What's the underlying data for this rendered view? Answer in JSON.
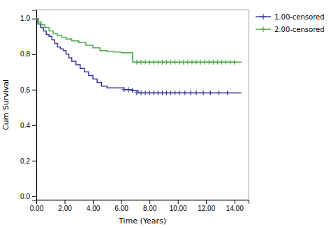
{
  "chart_data": {
    "type": "step",
    "xlabel": "Time (Years)",
    "ylabel": "Cum Survival",
    "xlim": [
      0,
      15
    ],
    "ylim": [
      -0.02,
      1.05
    ],
    "xticks": [
      {
        "value": 0,
        "label": "0.00"
      },
      {
        "value": 2,
        "label": "2.00"
      },
      {
        "value": 4,
        "label": "4.00"
      },
      {
        "value": 6,
        "label": "6.00"
      },
      {
        "value": 8,
        "label": "8.00"
      },
      {
        "value": 10,
        "label": "10.00"
      },
      {
        "value": 12,
        "label": "12.00"
      },
      {
        "value": 14,
        "label": "14.00"
      }
    ],
    "yticks": [
      {
        "value": 0,
        "label": "0.0"
      },
      0.2,
      0.4,
      0.6,
      0.8,
      {
        "value": 1,
        "label": "1.0"
      }
    ],
    "legend": "right",
    "series": [
      {
        "name": "1.00-censored",
        "color": "#3a3a9c",
        "marker": "+",
        "x": [
          0.0,
          0.1,
          0.3,
          0.5,
          0.7,
          0.9,
          1.1,
          1.3,
          1.5,
          1.7,
          1.9,
          2.1,
          2.3,
          2.5,
          2.8,
          3.1,
          3.4,
          3.7,
          4.0,
          4.3,
          4.6,
          5.0,
          5.4,
          5.8,
          6.2,
          6.5,
          6.8,
          7.2,
          14.5
        ],
        "values": [
          1.0,
          0.97,
          0.95,
          0.93,
          0.91,
          0.9,
          0.88,
          0.86,
          0.84,
          0.83,
          0.82,
          0.8,
          0.78,
          0.76,
          0.74,
          0.72,
          0.7,
          0.68,
          0.66,
          0.64,
          0.62,
          0.61,
          0.61,
          0.61,
          0.6,
          0.6,
          0.595,
          0.582,
          0.582
        ],
        "censor_x": [
          6.2,
          6.5,
          6.8,
          7.1,
          7.4,
          7.7,
          8.0,
          8.3,
          8.6,
          8.9,
          9.2,
          9.5,
          9.8,
          10.1,
          10.5,
          10.9,
          11.3,
          11.8,
          12.3,
          12.9,
          13.5
        ],
        "censor_values": [
          0.6,
          0.6,
          0.595,
          0.582,
          0.582,
          0.582,
          0.582,
          0.582,
          0.582,
          0.582,
          0.582,
          0.582,
          0.582,
          0.582,
          0.582,
          0.582,
          0.582,
          0.582,
          0.582,
          0.582,
          0.582
        ]
      },
      {
        "name": "2.00-censored",
        "color": "#4aaa4a",
        "marker": "+",
        "x": [
          0.0,
          0.15,
          0.35,
          0.6,
          0.9,
          1.2,
          1.5,
          1.8,
          2.1,
          2.5,
          3.0,
          3.5,
          4.0,
          4.5,
          5.0,
          5.5,
          6.0,
          6.8,
          7.0,
          14.5
        ],
        "values": [
          1.0,
          0.98,
          0.965,
          0.95,
          0.93,
          0.915,
          0.905,
          0.895,
          0.885,
          0.875,
          0.865,
          0.85,
          0.835,
          0.82,
          0.815,
          0.812,
          0.808,
          0.755,
          0.755,
          0.755
        ],
        "censor_x": [
          7.1,
          7.4,
          7.7,
          8.0,
          8.3,
          8.6,
          8.9,
          9.2,
          9.5,
          9.8,
          10.1,
          10.4,
          10.7,
          11.0,
          11.3,
          11.6,
          11.9,
          12.2,
          12.5,
          12.8,
          13.1,
          13.4,
          13.7,
          14.0
        ],
        "censor_values": [
          0.755,
          0.755,
          0.755,
          0.755,
          0.755,
          0.755,
          0.755,
          0.755,
          0.755,
          0.755,
          0.755,
          0.755,
          0.755,
          0.755,
          0.755,
          0.755,
          0.755,
          0.755,
          0.755,
          0.755,
          0.755,
          0.755,
          0.755,
          0.755
        ]
      }
    ]
  }
}
